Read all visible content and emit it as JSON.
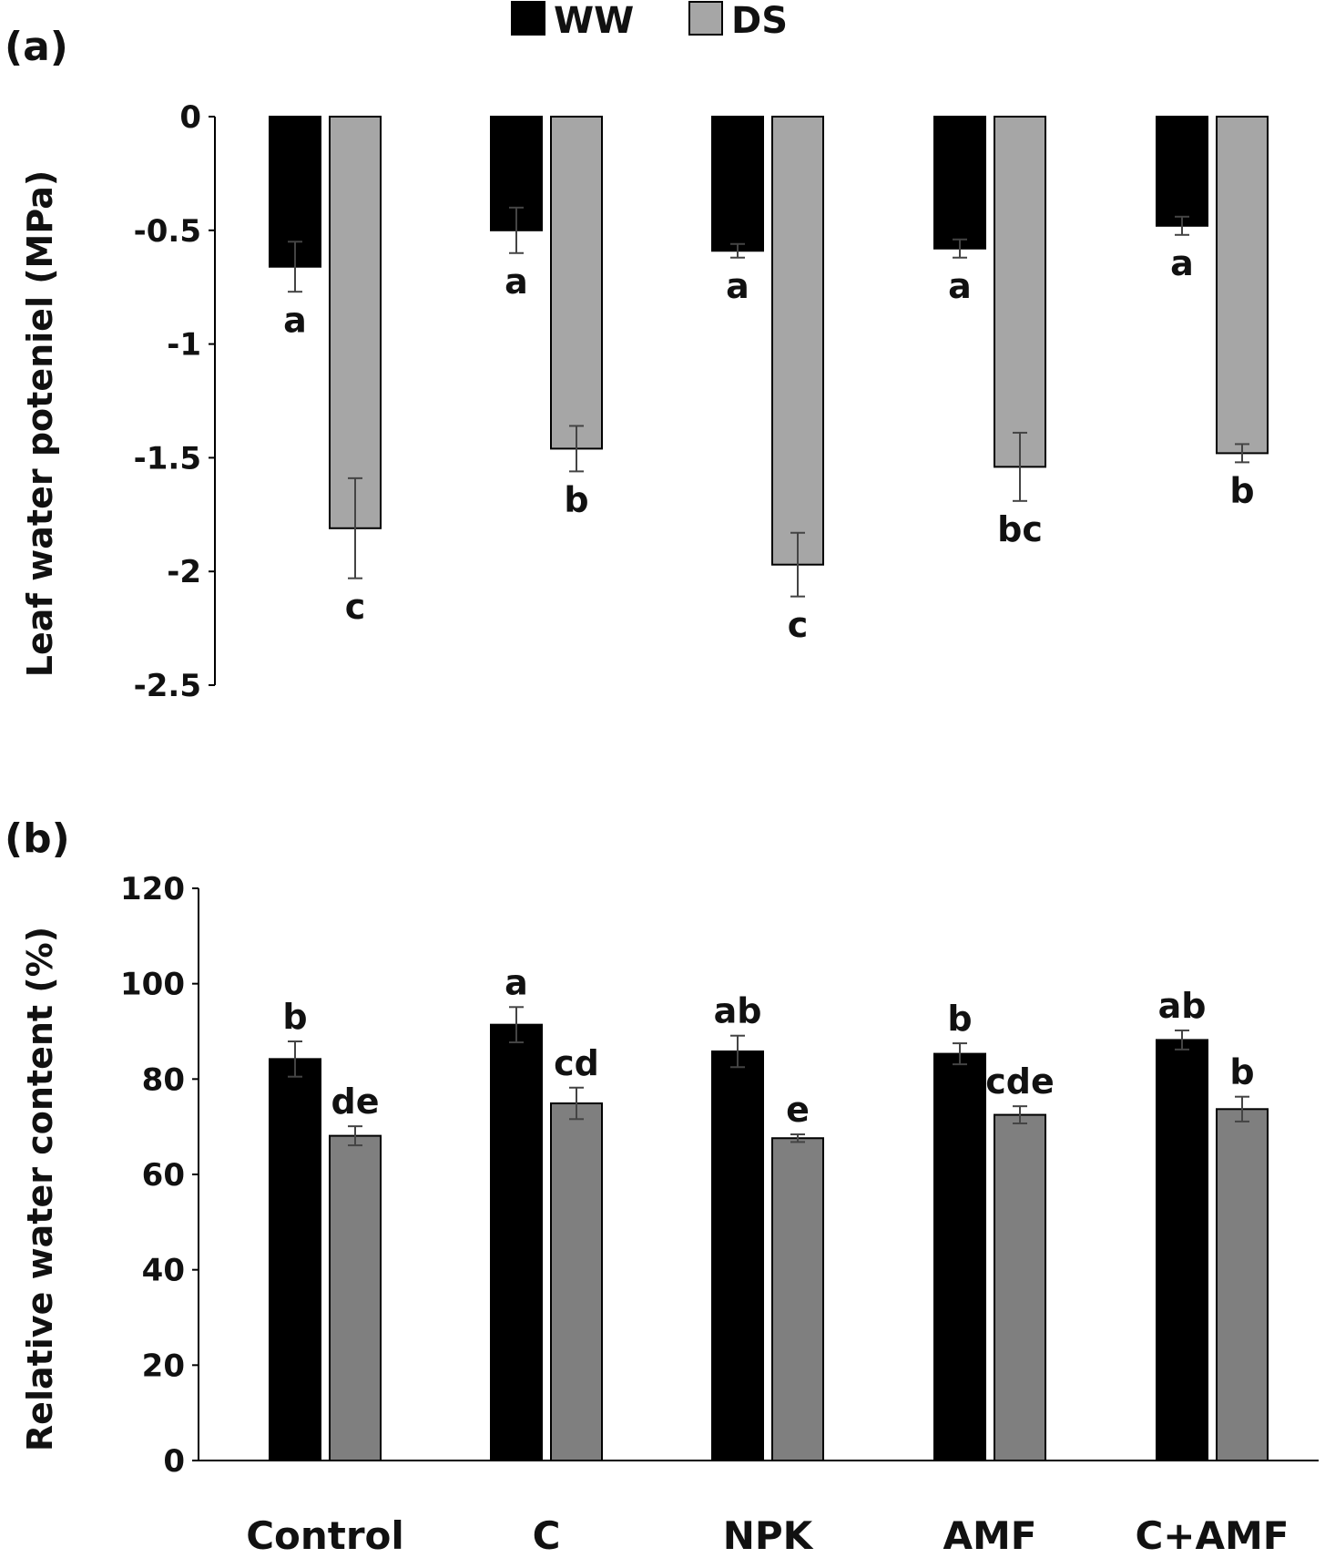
{
  "legend": {
    "items": [
      {
        "name": "WW",
        "color": "#000000"
      },
      {
        "name": "DS_a",
        "label": "DS",
        "color": "#a6a6a6"
      }
    ]
  },
  "chart_data": [
    {
      "panel_label": "(a)",
      "type": "bar",
      "ylabel": "Leaf water poteniel (MPa)",
      "ylim": [
        -2.5,
        0
      ],
      "yticks": [
        "0",
        "-0.5",
        "-1",
        "-1.5",
        "-2",
        "-2.5"
      ],
      "ytick_values": [
        0,
        -0.5,
        -1,
        -1.5,
        -2,
        -2.5
      ],
      "categories": [
        "Control",
        "C",
        "NPK",
        "AMF",
        "C+AMF"
      ],
      "series": [
        {
          "name": "WW",
          "color": "#000000",
          "values": [
            -0.66,
            -0.5,
            -0.59,
            -0.58,
            -0.48
          ],
          "errors": [
            0.11,
            0.1,
            0.03,
            0.04,
            0.04
          ],
          "letters": [
            "a",
            "a",
            "a",
            "a",
            "a"
          ]
        },
        {
          "name": "DS",
          "color": "#a6a6a6",
          "values": [
            -1.81,
            -1.46,
            -1.97,
            -1.54,
            -1.48
          ],
          "errors": [
            0.22,
            0.1,
            0.14,
            0.15,
            0.04
          ],
          "letters": [
            "c",
            "b",
            "c",
            "bc",
            "b"
          ]
        }
      ]
    },
    {
      "panel_label": "(b)",
      "type": "bar",
      "ylabel": "Relative water content (%)",
      "ylim": [
        0,
        120
      ],
      "yticks": [
        "0",
        "20",
        "40",
        "60",
        "80",
        "100",
        "120"
      ],
      "ytick_values": [
        0,
        20,
        40,
        60,
        80,
        100,
        120
      ],
      "categories": [
        "Control",
        "C",
        "NPK",
        "AMF",
        "C+AMF"
      ],
      "series": [
        {
          "name": "WW",
          "color": "#000000",
          "values": [
            84.2,
            91.4,
            85.8,
            85.3,
            88.2
          ],
          "errors": [
            3.7,
            3.7,
            3.3,
            2.2,
            2.0
          ],
          "letters": [
            "b",
            "a",
            "ab",
            "b",
            "ab"
          ]
        },
        {
          "name": "DS",
          "color": "#7f7f7f",
          "values": [
            68.1,
            74.9,
            67.6,
            72.5,
            73.7
          ],
          "errors": [
            2.0,
            3.3,
            0.8,
            1.8,
            2.6
          ],
          "letters": [
            "de",
            "cd",
            "e",
            "cde",
            "b"
          ]
        }
      ]
    }
  ]
}
